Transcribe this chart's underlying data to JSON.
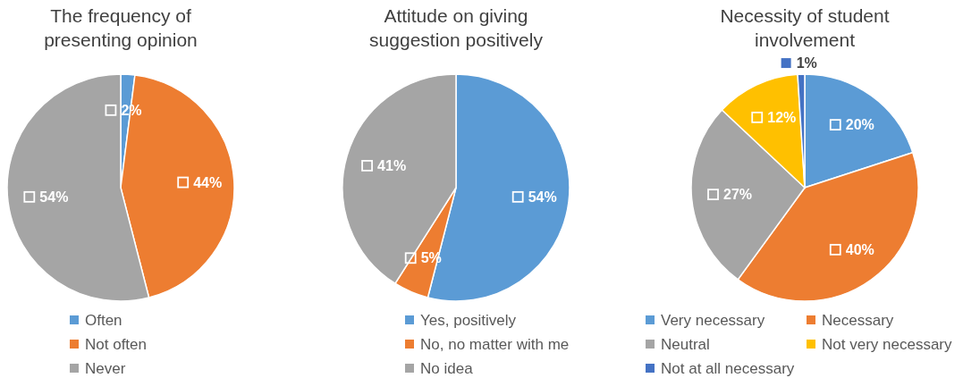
{
  "chart_data": [
    {
      "type": "pie",
      "title": "The frequency of presenting opinion",
      "categories": [
        "Often",
        "Not often",
        "Never"
      ],
      "values": [
        2,
        44,
        54
      ],
      "value_labels": [
        "2%",
        "44%",
        "54%"
      ],
      "colors": [
        "#5b9bd5",
        "#ed7d31",
        "#a5a5a5"
      ],
      "legend": "bottom"
    },
    {
      "type": "pie",
      "title": "Attitude on giving suggestion positively",
      "categories": [
        "Yes, positively",
        "No, no matter with me",
        "No idea"
      ],
      "values": [
        54,
        5,
        41
      ],
      "value_labels": [
        "54%",
        "5%",
        "41%"
      ],
      "colors": [
        "#5b9bd5",
        "#ed7d31",
        "#a5a5a5"
      ],
      "legend": "bottom"
    },
    {
      "type": "pie",
      "title": "Necessity of student involvement",
      "categories": [
        "Very necessary",
        "Necessary",
        "Neutral",
        "Not very necessary",
        "Not at all necessary"
      ],
      "values": [
        20,
        40,
        27,
        12,
        1
      ],
      "value_labels": [
        "20%",
        "40%",
        "27%",
        "12%",
        "1%"
      ],
      "colors": [
        "#5b9bd5",
        "#ed7d31",
        "#a5a5a5",
        "#ffc000",
        "#4472c4"
      ],
      "legend": "bottom"
    }
  ]
}
